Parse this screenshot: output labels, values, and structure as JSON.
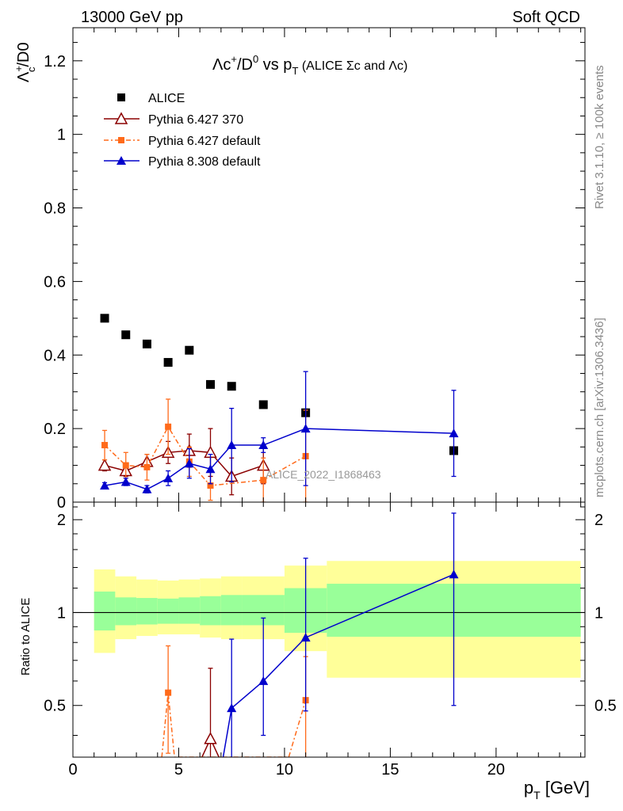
{
  "header": {
    "left": "13000 GeV pp",
    "right": "Soft QCD"
  },
  "side_labels": {
    "rivet": "Rivet 3.1.10, ≥ 100k events",
    "mcplots": "mcplots.cern.ch [arXiv:1306.3436]"
  },
  "watermark": "ALICE_2022_I1868463",
  "colors": {
    "alice": "#000000",
    "pythia6_370": "#8b0000",
    "pythia6_default": "#ff6a1a",
    "pythia8_default": "#0000cc",
    "band_inner": "#99ff99",
    "band_outer": "#ffff99"
  },
  "chart_data": [
    {
      "type": "scatter",
      "title": "Λc⁺/D⁰ vs p_T (ALICE Σc and Λc)",
      "ylabel": "Λc⁺/D0",
      "xlabel": "",
      "xlim": [
        0,
        24.2
      ],
      "ylim": [
        0,
        1.29
      ],
      "yticks": [
        0,
        0.2,
        0.4,
        0.6,
        0.8,
        1,
        1.2
      ],
      "ytick_labels": [
        "0",
        "0.2",
        "0.4",
        "0.6",
        "0.8",
        "1",
        "1.2"
      ],
      "grid": false,
      "legend": "top-left",
      "series": [
        {
          "name": "ALICE",
          "marker": "square",
          "x": [
            1.5,
            2.5,
            3.5,
            4.5,
            5.5,
            6.5,
            7.5,
            9,
            11,
            18
          ],
          "y": [
            0.5,
            0.455,
            0.43,
            0.38,
            0.413,
            0.32,
            0.315,
            0.265,
            0.243,
            0.14
          ]
        },
        {
          "name": "Pythia 6.427 370",
          "marker": "open-triangle",
          "line": "solid",
          "x": [
            1.5,
            2.5,
            3.5,
            4.5,
            5.5,
            6.5,
            7.5,
            9
          ],
          "y": [
            0.1,
            0.085,
            0.11,
            0.135,
            0.14,
            0.135,
            0.07,
            0.1
          ],
          "err": [
            0.015,
            0.015,
            0.02,
            0.03,
            0.045,
            0.065,
            0.05,
            0.05
          ]
        },
        {
          "name": "Pythia 6.427 default",
          "marker": "small-square",
          "line": "dash-dot",
          "x": [
            1.5,
            2.5,
            3.5,
            4.5,
            5.5,
            6.5,
            9,
            11
          ],
          "y": [
            0.155,
            0.1,
            0.095,
            0.205,
            0.11,
            0.045,
            0.06,
            0.125
          ],
          "err": [
            0.04,
            0.035,
            0.035,
            0.075,
            0.04,
            0.04,
            0.06,
            0.125
          ]
        },
        {
          "name": "Pythia 8.308 default",
          "marker": "filled-triangle",
          "line": "solid",
          "x": [
            1.5,
            2.5,
            3.5,
            4.5,
            5.5,
            6.5,
            7.5,
            9,
            11,
            18
          ],
          "y": [
            0.045,
            0.055,
            0.035,
            0.065,
            0.105,
            0.09,
            0.155,
            0.155,
            0.2,
            0.187
          ],
          "err": [
            0.008,
            0.01,
            0.01,
            0.02,
            0.04,
            0.04,
            0.1,
            0.02,
            0.155,
            0.117
          ]
        }
      ]
    },
    {
      "type": "line",
      "xlabel": "p_T [GeV]",
      "ylabel": "Ratio to ALICE",
      "xlim": [
        0,
        24.2
      ],
      "ylim": [
        0.34,
        2.28
      ],
      "yscale": "log",
      "xticks": [
        0,
        5,
        10,
        15,
        20
      ],
      "xtick_labels": [
        "0",
        "5",
        "10",
        "15",
        "20"
      ],
      "yticks": [
        0.5,
        1,
        2
      ],
      "ytick_labels": [
        "0.5",
        "1",
        "2"
      ],
      "bands": [
        {
          "x0": 1,
          "x1": 2,
          "inner": [
            0.875,
            1.17
          ],
          "outer": [
            0.74,
            1.38
          ]
        },
        {
          "x0": 2,
          "x1": 3,
          "inner": [
            0.91,
            1.12
          ],
          "outer": [
            0.82,
            1.31
          ]
        },
        {
          "x0": 3,
          "x1": 4,
          "inner": [
            0.915,
            1.115
          ],
          "outer": [
            0.84,
            1.28
          ]
        },
        {
          "x0": 4,
          "x1": 5,
          "inner": [
            0.92,
            1.11
          ],
          "outer": [
            0.85,
            1.27
          ]
        },
        {
          "x0": 5,
          "x1": 6,
          "inner": [
            0.92,
            1.12
          ],
          "outer": [
            0.85,
            1.28
          ]
        },
        {
          "x0": 6,
          "x1": 7,
          "inner": [
            0.91,
            1.13
          ],
          "outer": [
            0.83,
            1.29
          ]
        },
        {
          "x0": 7,
          "x1": 8,
          "inner": [
            0.91,
            1.14
          ],
          "outer": [
            0.82,
            1.31
          ]
        },
        {
          "x0": 8,
          "x1": 10,
          "inner": [
            0.91,
            1.14
          ],
          "outer": [
            0.82,
            1.31
          ]
        },
        {
          "x0": 10,
          "x1": 12,
          "inner": [
            0.86,
            1.2
          ],
          "outer": [
            0.75,
            1.42
          ]
        },
        {
          "x0": 12,
          "x1": 24,
          "inner": [
            0.835,
            1.24
          ],
          "outer": [
            0.615,
            1.47
          ]
        }
      ],
      "series": [
        {
          "name": "Pythia 6.427 370",
          "x": [
            6.5
          ],
          "y": [
            0.39
          ],
          "err_low": [
            0.1
          ],
          "err_high": [
            0.27
          ],
          "offscale_links": [
            [
              6.1,
              0.34
            ],
            [
              6.5,
              0.39
            ],
            [
              6.9,
              0.34
            ]
          ]
        },
        {
          "name": "Pythia 6.427 default",
          "x": [
            4.5,
            11
          ],
          "y": [
            0.55,
            0.52
          ],
          "err_low": [
            0.2,
            0.2
          ],
          "err_high": [
            0.23,
            0.2
          ],
          "offscale_links": [
            [
              4.2,
              0.34
            ],
            [
              4.5,
              0.55
            ],
            [
              4.8,
              0.34
            ],
            [
              10.2,
              0.34
            ],
            [
              11,
              0.52
            ]
          ]
        },
        {
          "name": "Pythia 8.308 default",
          "x": [
            7.5,
            9,
            11,
            18
          ],
          "y": [
            0.49,
            0.6,
            0.83,
            1.33
          ],
          "err_low": [
            0.2,
            0.2,
            0.35,
            0.83
          ],
          "err_high": [
            0.33,
            0.36,
            0.67,
            0.77
          ],
          "offscale_links": [
            [
              7.1,
              0.34
            ],
            [
              7.5,
              0.49
            ]
          ]
        }
      ]
    }
  ]
}
